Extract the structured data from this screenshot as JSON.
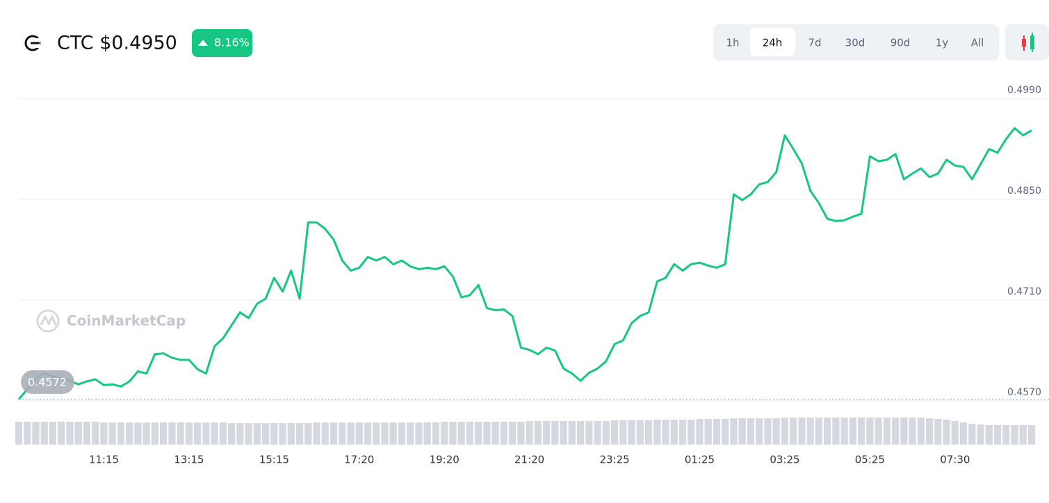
{
  "chart_data": {
    "type": "line",
    "title": "CTC $0.4950",
    "change": "8.16%",
    "timeframes": [
      "1h",
      "24h",
      "7d",
      "30d",
      "90d",
      "1y",
      "All"
    ],
    "active_timeframe": "24h",
    "watermark": "CoinMarketCap",
    "open_price": 0.4572,
    "ylim": [
      0.457,
      0.499
    ],
    "yticks": [
      {
        "value": 0.499,
        "label": "0.4990"
      },
      {
        "value": 0.485,
        "label": "0.4850"
      },
      {
        "value": 0.471,
        "label": "0.4710"
      },
      {
        "value": 0.457,
        "label": "0.4570"
      }
    ],
    "grid": true,
    "categories": [
      null,
      null,
      null,
      null,
      null,
      null,
      null,
      null,
      null,
      null,
      "11:15",
      null,
      null,
      null,
      null,
      null,
      null,
      null,
      null,
      null,
      "13:15",
      null,
      null,
      null,
      null,
      null,
      null,
      null,
      null,
      null,
      "15:15",
      null,
      null,
      null,
      null,
      null,
      null,
      null,
      null,
      null,
      "17:20",
      null,
      null,
      null,
      null,
      null,
      null,
      null,
      null,
      null,
      "19:20",
      null,
      null,
      null,
      null,
      null,
      null,
      null,
      null,
      null,
      "21:20",
      null,
      null,
      null,
      null,
      null,
      null,
      null,
      null,
      null,
      "23:25",
      null,
      null,
      null,
      null,
      null,
      null,
      null,
      null,
      null,
      "01:25",
      null,
      null,
      null,
      null,
      null,
      null,
      null,
      null,
      null,
      "03:25",
      null,
      null,
      null,
      null,
      null,
      null,
      null,
      null,
      null,
      "05:25",
      null,
      null,
      null,
      null,
      null,
      null,
      null,
      null,
      null,
      "07:30",
      null,
      null,
      null,
      null,
      null,
      null,
      null,
      null,
      null
    ],
    "series": [
      {
        "color": "#16c784",
        "values": [
          0.4572,
          0.4586,
          0.4601,
          0.4609,
          0.4604,
          0.4601,
          0.4598,
          0.4593,
          0.4597,
          0.46,
          0.4592,
          0.4593,
          0.459,
          0.4597,
          0.4611,
          0.4608,
          0.4635,
          0.4636,
          0.463,
          0.4627,
          0.4627,
          0.4614,
          0.4608,
          0.4646,
          0.4657,
          0.4675,
          0.4693,
          0.4685,
          0.4705,
          0.4712,
          0.4741,
          0.4722,
          0.4751,
          0.4712,
          0.4818,
          0.4818,
          0.4809,
          0.4794,
          0.4765,
          0.4751,
          0.4755,
          0.477,
          0.4765,
          0.477,
          0.476,
          0.4765,
          0.4757,
          0.4753,
          0.4755,
          0.4753,
          0.4757,
          0.4743,
          0.4714,
          0.4717,
          0.4731,
          0.4699,
          0.4696,
          0.4697,
          0.4688,
          0.4644,
          0.4641,
          0.4635,
          0.4644,
          0.464,
          0.4615,
          0.4608,
          0.4598,
          0.4609,
          0.4615,
          0.4625,
          0.4649,
          0.4654,
          0.4678,
          0.4688,
          0.4693,
          0.4736,
          0.4741,
          0.476,
          0.4751,
          0.476,
          0.4762,
          0.4758,
          0.4755,
          0.476,
          0.4857,
          0.4849,
          0.4857,
          0.4871,
          0.4874,
          0.4888,
          0.4939,
          0.492,
          0.49,
          0.4862,
          0.4845,
          0.4823,
          0.482,
          0.4821,
          0.4826,
          0.483,
          0.491,
          0.4903,
          0.4905,
          0.4913,
          0.4878,
          0.4886,
          0.4893,
          0.4881,
          0.4886,
          0.4905,
          0.4897,
          0.4895,
          0.4878,
          0.4899,
          0.492,
          0.4915,
          0.4934,
          0.4949,
          0.4939,
          0.4946
        ]
      }
    ],
    "volume": {
      "color": "#d5d8de",
      "values": [
        33,
        33,
        33,
        33,
        33,
        33,
        33,
        33,
        33,
        33,
        32,
        32,
        32,
        32,
        32,
        32,
        32,
        32,
        32,
        32,
        32,
        32,
        32,
        32,
        32,
        31,
        31,
        31,
        31,
        31,
        31,
        31,
        31,
        31,
        31,
        32,
        32,
        32,
        32,
        32,
        32,
        32,
        32,
        32,
        32,
        32,
        32,
        32,
        32,
        32,
        33,
        33,
        33,
        33,
        33,
        33,
        33,
        33,
        33,
        33,
        34,
        34,
        34,
        34,
        34,
        34,
        34,
        34,
        34,
        34,
        35,
        35,
        35,
        35,
        35,
        36,
        36,
        36,
        36,
        36,
        37,
        37,
        37,
        37,
        38,
        38,
        38,
        38,
        38,
        38,
        39,
        39,
        39,
        39,
        39,
        39,
        39,
        39,
        39,
        39,
        39,
        39,
        39,
        39,
        39,
        39,
        39,
        38,
        37,
        36,
        34,
        32,
        30,
        29,
        28,
        28,
        28,
        28,
        28,
        28
      ]
    }
  }
}
